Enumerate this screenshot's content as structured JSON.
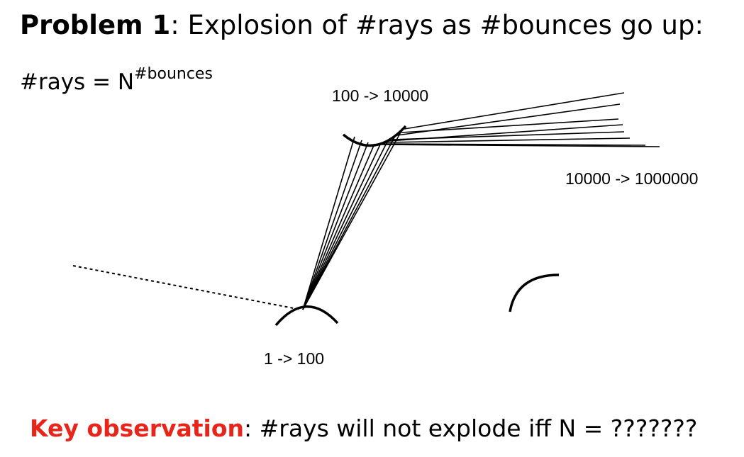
{
  "title": {
    "bold_part": "Problem 1",
    "rest": ": Explosion of #rays as #bounces go up:"
  },
  "formula": {
    "base": "#rays = N",
    "exponent": "#bounces"
  },
  "labels": {
    "first_bounce": "1 -> 100",
    "second_bounce": "100 -> 10000",
    "third_bounce": "10000 -> 1000000"
  },
  "observation": {
    "key": "Key observation",
    "rest": ": #rays will not explode iff N = ???????"
  },
  "colors": {
    "accent": "#e8251a",
    "ink": "#000000"
  }
}
